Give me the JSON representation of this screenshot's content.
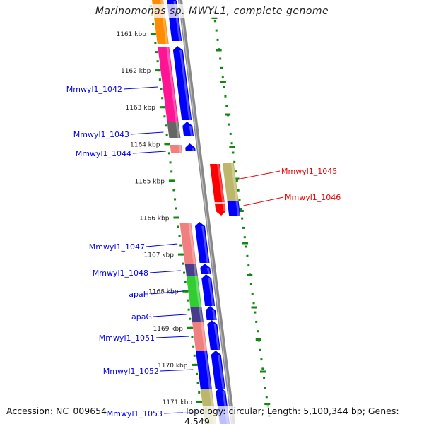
{
  "title": "Marinomonas sp. MWYL1, complete genome",
  "accession": "Accession: NC_009654",
  "topology": "Topology: circular; Length: 5,100,344 bp; Genes: 4,549",
  "colors": {
    "backbone": "#888888",
    "ticks": "#118811",
    "forward_label": "#0000ee",
    "reverse_label": "#ee0000",
    "cds": "#0000ff"
  },
  "kbp_ticks": [
    "1161 kbp",
    "1162 kbp",
    "1163 kbp",
    "1164 kbp",
    "1165 kbp",
    "1166 kbp",
    "1167 kbp",
    "1168 kbp",
    "1169 kbp",
    "1170 kbp",
    "1171 kbp"
  ],
  "features": [
    {
      "id": "f0",
      "color": "#ff8c00"
    },
    {
      "id": "Mmwyl1_1042",
      "label": "Mmwyl1_1042",
      "color": "#ff1493"
    },
    {
      "id": "Mmwyl1_1043",
      "label": "Mmwyl1_1043",
      "color": "#666666"
    },
    {
      "id": "Mmwyl1_1044",
      "label": "Mmwyl1_1044",
      "color": "#f08080"
    },
    {
      "id": "Mmwyl1_1045",
      "label": "Mmwyl1_1045",
      "color": "#ff0000"
    },
    {
      "id": "Mmwyl1_1046",
      "label": "Mmwyl1_1046",
      "color": "#bdb76b"
    },
    {
      "id": "Mmwyl1_1047",
      "label": "Mmwyl1_1047",
      "color": "#f08080"
    },
    {
      "id": "Mmwyl1_1048",
      "label": "Mmwyl1_1048",
      "color": "#483d8b"
    },
    {
      "id": "apaH",
      "label": "apaH",
      "color": "#32cd32"
    },
    {
      "id": "apaG",
      "label": "apaG",
      "color": "#483d8b"
    },
    {
      "id": "Mmwyl1_1051",
      "label": "Mmwyl1_1051",
      "color": "#f08080"
    },
    {
      "id": "Mmwyl1_1052",
      "label": "Mmwyl1_1052",
      "color": "#0000ff"
    },
    {
      "id": "Mmwyl1_1053",
      "label": "Mmwyl1_1053",
      "color": "#bdb76b"
    }
  ]
}
